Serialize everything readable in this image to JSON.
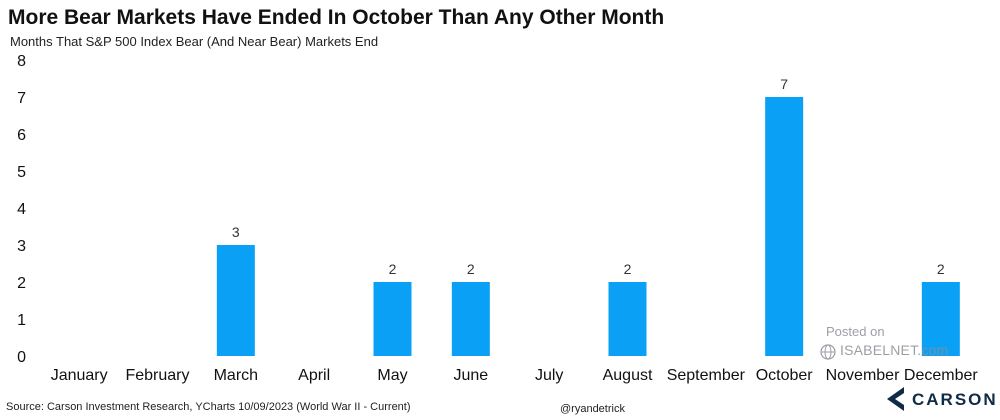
{
  "title": "More Bear Markets Have Ended In October Than Any Other Month",
  "subtitle": "Months That S&P 500 Index Bear (And Near Bear) Markets End",
  "source": "Source: Carson Investment Research, YCharts 10/09/2023 (World War II - Current)",
  "handle": "@ryandetrick",
  "watermark": {
    "line1": "Posted on",
    "line2": "ISABELNET.com"
  },
  "logo": {
    "text": "CARSON",
    "icon": "carson-chevron-icon"
  },
  "colors": {
    "bar": "#0aa0f6",
    "logo": "#0f2b46"
  },
  "chart_data": {
    "type": "bar",
    "title": "More Bear Markets Have Ended In October Than Any Other Month",
    "subtitle": "Months That S&P 500 Index Bear (And Near Bear) Markets End",
    "categories": [
      "January",
      "February",
      "March",
      "April",
      "May",
      "June",
      "July",
      "August",
      "September",
      "October",
      "November",
      "December"
    ],
    "values": [
      0,
      0,
      3,
      0,
      2,
      2,
      0,
      2,
      0,
      7,
      0,
      2
    ],
    "data_labels": [
      "",
      "",
      "3",
      "",
      "2",
      "2",
      "",
      "2",
      "",
      "7",
      "",
      "2"
    ],
    "xlabel": "",
    "ylabel": "",
    "ylim": [
      0,
      8
    ],
    "yticks": [
      0,
      1,
      2,
      3,
      4,
      5,
      6,
      7,
      8
    ],
    "grid": false,
    "legend": "none"
  }
}
